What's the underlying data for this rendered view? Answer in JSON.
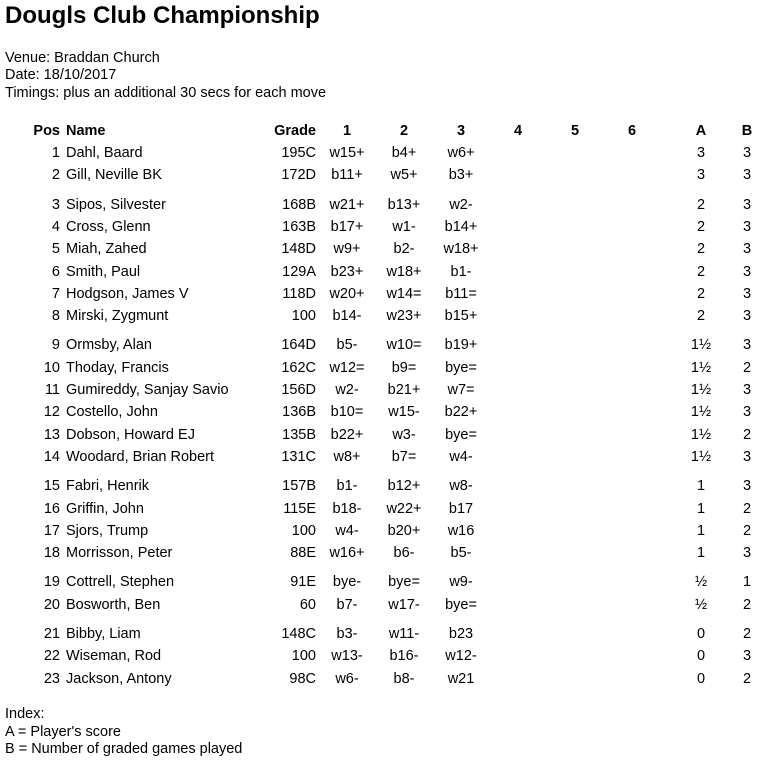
{
  "title": "Dougls Club Championship",
  "venue": "Venue: Braddan Church",
  "date": "Date: 18/10/2017",
  "timings": "Timings: plus an additional 30 secs for each move",
  "headers": {
    "pos": "Pos",
    "name": "Name",
    "grade": "Grade",
    "r1": "1",
    "r2": "2",
    "r3": "3",
    "r4": "4",
    "r5": "5",
    "r6": "6",
    "a": "A",
    "b": "B"
  },
  "groups": [
    [
      {
        "pos": "1",
        "name": "Dahl, Baard",
        "grade": "195C",
        "r1": "w15+",
        "r2": "b4+",
        "r3": "w6+",
        "a": "3",
        "b": "3"
      },
      {
        "pos": "2",
        "name": "Gill, Neville BK",
        "grade": "172D",
        "r1": "b11+",
        "r2": "w5+",
        "r3": "b3+",
        "a": "3",
        "b": "3"
      }
    ],
    [
      {
        "pos": "3",
        "name": "Sipos, Silvester",
        "grade": "168B",
        "r1": "w21+",
        "r2": "b13+",
        "r3": "w2-",
        "a": "2",
        "b": "3"
      },
      {
        "pos": "4",
        "name": "Cross, Glenn",
        "grade": "163B",
        "r1": "b17+",
        "r2": "w1-",
        "r3": "b14+",
        "a": "2",
        "b": "3"
      },
      {
        "pos": "5",
        "name": "Miah, Zahed",
        "grade": "148D",
        "r1": "w9+",
        "r2": "b2-",
        "r3": "w18+",
        "a": "2",
        "b": "3"
      },
      {
        "pos": "6",
        "name": "Smith, Paul",
        "grade": "129A",
        "r1": "b23+",
        "r2": "w18+",
        "r3": "b1-",
        "a": "2",
        "b": "3"
      },
      {
        "pos": "7",
        "name": "Hodgson, James V",
        "grade": "118D",
        "r1": "w20+",
        "r2": "w14=",
        "r3": "b11=",
        "a": "2",
        "b": "3"
      },
      {
        "pos": "8",
        "name": "Mirski, Zygmunt",
        "grade": "100",
        "r1": "b14-",
        "r2": "w23+",
        "r3": "b15+",
        "a": "2",
        "b": "3"
      }
    ],
    [
      {
        "pos": "9",
        "name": "Ormsby, Alan",
        "grade": "164D",
        "r1": "b5-",
        "r2": "w10=",
        "r3": "b19+",
        "a": "1½",
        "b": "3"
      },
      {
        "pos": "10",
        "name": "Thoday, Francis",
        "grade": "162C",
        "r1": "w12=",
        "r2": "b9=",
        "r3": "bye=",
        "a": "1½",
        "b": "2"
      },
      {
        "pos": "11",
        "name": "Gumireddy, Sanjay Savio",
        "grade": "156D",
        "r1": "w2-",
        "r2": "b21+",
        "r3": "w7=",
        "a": "1½",
        "b": "3"
      },
      {
        "pos": "12",
        "name": "Costello, John",
        "grade": "136B",
        "r1": "b10=",
        "r2": "w15-",
        "r3": "b22+",
        "a": "1½",
        "b": "3"
      },
      {
        "pos": "13",
        "name": "Dobson, Howard EJ",
        "grade": "135B",
        "r1": "b22+",
        "r2": "w3-",
        "r3": "bye=",
        "a": "1½",
        "b": "2"
      },
      {
        "pos": "14",
        "name": "Woodard, Brian Robert",
        "grade": "131C",
        "r1": "w8+",
        "r2": "b7=",
        "r3": "w4-",
        "a": "1½",
        "b": "3"
      }
    ],
    [
      {
        "pos": "15",
        "name": "Fabri, Henrik",
        "grade": "157B",
        "r1": "b1-",
        "r2": "b12+",
        "r3": "w8-",
        "a": "1",
        "b": "3"
      },
      {
        "pos": "16",
        "name": "Griffin, John",
        "grade": "115E",
        "r1": "b18-",
        "r2": "w22+",
        "r3": "b17",
        "a": "1",
        "b": "2"
      },
      {
        "pos": "17",
        "name": "Sjors, Trump",
        "grade": "100",
        "r1": "w4-",
        "r2": "b20+",
        "r3": "w16",
        "a": "1",
        "b": "2"
      },
      {
        "pos": "18",
        "name": "Morrisson, Peter",
        "grade": "88E",
        "r1": "w16+",
        "r2": "b6-",
        "r3": "b5-",
        "a": "1",
        "b": "3"
      }
    ],
    [
      {
        "pos": "19",
        "name": "Cottrell, Stephen",
        "grade": "91E",
        "r1": "bye-",
        "r2": "bye=",
        "r3": "w9-",
        "a": "½",
        "b": "1"
      },
      {
        "pos": "20",
        "name": "Bosworth, Ben",
        "grade": "60",
        "r1": "b7-",
        "r2": "w17-",
        "r3": "bye=",
        "a": "½",
        "b": "2"
      }
    ],
    [
      {
        "pos": "21",
        "name": "Bibby, Liam",
        "grade": "148C",
        "r1": "b3-",
        "r2": "w11-",
        "r3": "b23",
        "a": "0",
        "b": "2"
      },
      {
        "pos": "22",
        "name": "Wiseman, Rod",
        "grade": "100",
        "r1": "w13-",
        "r2": "b16-",
        "r3": "w12-",
        "a": "0",
        "b": "3"
      },
      {
        "pos": "23",
        "name": "Jackson, Antony",
        "grade": "98C",
        "r1": "w6-",
        "r2": "b8-",
        "r3": "w21",
        "a": "0",
        "b": "2"
      }
    ]
  ],
  "index": {
    "heading": "Index:",
    "a": "A = Player's score",
    "b": "B = Number of graded games played"
  }
}
